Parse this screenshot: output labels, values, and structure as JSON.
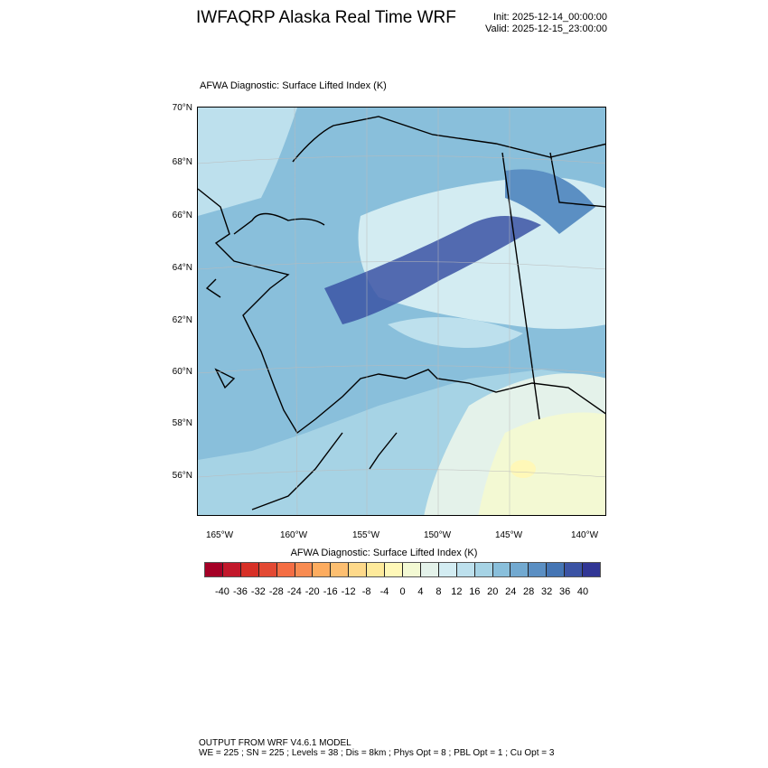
{
  "header": {
    "title": "IWFAQRP Alaska Real Time WRF",
    "init": "Init: 2025-12-14_00:00:00",
    "valid": "Valid: 2025-12-15_23:00:00"
  },
  "map": {
    "subtitle": "AFWA Diagnostic: Surface Lifted Index   (K)",
    "lat_labels": [
      "70°N",
      "68°N",
      "66°N",
      "64°N",
      "62°N",
      "60°N",
      "58°N",
      "56°N"
    ],
    "lon_labels": [
      "165°W",
      "160°W",
      "155°W",
      "150°W",
      "145°W",
      "140°W"
    ],
    "region": "Alaska",
    "coastline_color": "#000000"
  },
  "colorbar": {
    "title": "AFWA Diagnostic: Surface Lifted Index  (K)",
    "labels": [
      "-40",
      "-36",
      "-32",
      "-28",
      "-24",
      "-20",
      "-16",
      "-12",
      "-8",
      "-4",
      "0",
      "4",
      "8",
      "12",
      "16",
      "20",
      "24",
      "28",
      "32",
      "36",
      "40"
    ],
    "colors": [
      "#a50026",
      "#c2182b",
      "#d73027",
      "#e34933",
      "#f46d43",
      "#f88b51",
      "#fdac5f",
      "#fdbf71",
      "#fed98a",
      "#feea9b",
      "#fff8b8",
      "#f3f9d3",
      "#e4f2ea",
      "#d3ecf2",
      "#bde0ed",
      "#a6d3e5",
      "#89bfdb",
      "#72a9d0",
      "#5b8fc3",
      "#4575b4",
      "#3b53a4",
      "#313695"
    ]
  },
  "footer": {
    "line1": "OUTPUT FROM WRF V4.6.1 MODEL",
    "line2": "WE = 225 ; SN = 225 ; Levels = 38 ; Dis = 8km ; Phys Opt = 8 ; PBL Opt = 1 ; Cu Opt = 3"
  }
}
